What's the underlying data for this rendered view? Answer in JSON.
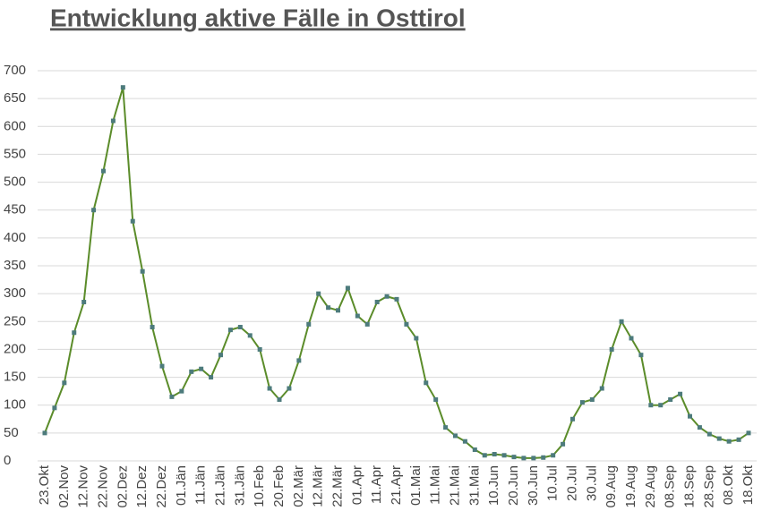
{
  "chart_data": {
    "type": "line",
    "title": "Entwicklung aktive Fälle in Osttirol",
    "categories": [
      "23.Okt",
      null,
      "02.Nov",
      null,
      "12.Nov",
      null,
      "22.Nov",
      null,
      "02.Dez",
      null,
      "12.Dez",
      null,
      "22.Dez",
      null,
      "01.Jän",
      null,
      "11.Jän",
      null,
      "21.Jän",
      null,
      "31.Jän",
      null,
      "10.Feb",
      null,
      "20.Feb",
      null,
      "02.Mär",
      null,
      "12.Mär",
      null,
      "22.Mär",
      null,
      "01.Apr",
      null,
      "11.Apr",
      null,
      "21.Apr",
      null,
      "01.Mai",
      null,
      "11.Mai",
      null,
      "21.Mai",
      null,
      "31.Mai",
      null,
      "10.Jun",
      null,
      "20.Jun",
      null,
      "30.Jun",
      null,
      "10.Jul",
      null,
      "20.Jul",
      null,
      "30.Jul",
      null,
      "09.Aug",
      null,
      "19.Aug",
      null,
      "29.Aug",
      null,
      "08.Sep",
      null,
      "18.Sep",
      null,
      "28.Sep",
      null,
      "08.Okt",
      null,
      "18.Okt"
    ],
    "values": [
      50,
      95,
      140,
      230,
      285,
      450,
      520,
      610,
      670,
      430,
      340,
      240,
      170,
      115,
      125,
      160,
      165,
      150,
      190,
      235,
      240,
      225,
      200,
      130,
      110,
      130,
      180,
      245,
      300,
      275,
      270,
      310,
      260,
      245,
      285,
      295,
      290,
      245,
      220,
      140,
      110,
      60,
      45,
      35,
      20,
      10,
      12,
      10,
      7,
      5,
      5,
      6,
      10,
      30,
      75,
      105,
      110,
      130,
      200,
      250,
      220,
      190,
      100,
      100,
      110,
      120,
      80,
      60,
      48,
      40,
      35,
      38,
      50
    ],
    "color": "#5b8c2a",
    "marker_color": "#4d7b7c",
    "ylim": [
      0,
      700
    ],
    "yticks": [
      0,
      50,
      100,
      150,
      200,
      250,
      300,
      350,
      400,
      450,
      500,
      550,
      600,
      650,
      700
    ],
    "grid": true
  }
}
